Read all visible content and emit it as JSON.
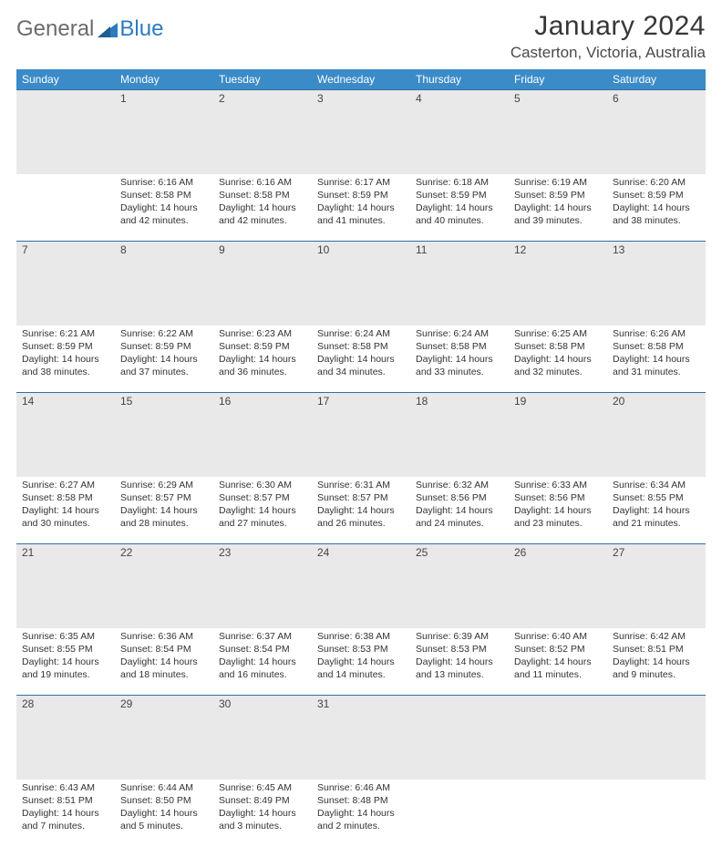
{
  "logo": {
    "general": "General",
    "blue": "Blue"
  },
  "title": "January 2024",
  "location": "Casterton, Victoria, Australia",
  "colors": {
    "header_bg": "#3b8bc8",
    "header_text": "#ffffff",
    "daynum_bg": "#e9e9e9",
    "border": "#2f6fa3",
    "logo_gray": "#6b6b6b",
    "logo_blue": "#2b7bbf"
  },
  "weekdays": [
    "Sunday",
    "Monday",
    "Tuesday",
    "Wednesday",
    "Thursday",
    "Friday",
    "Saturday"
  ],
  "weeks": [
    {
      "days": [
        null,
        {
          "n": "1",
          "sr": "Sunrise: 6:16 AM",
          "ss": "Sunset: 8:58 PM",
          "d1": "Daylight: 14 hours",
          "d2": "and 42 minutes."
        },
        {
          "n": "2",
          "sr": "Sunrise: 6:16 AM",
          "ss": "Sunset: 8:58 PM",
          "d1": "Daylight: 14 hours",
          "d2": "and 42 minutes."
        },
        {
          "n": "3",
          "sr": "Sunrise: 6:17 AM",
          "ss": "Sunset: 8:59 PM",
          "d1": "Daylight: 14 hours",
          "d2": "and 41 minutes."
        },
        {
          "n": "4",
          "sr": "Sunrise: 6:18 AM",
          "ss": "Sunset: 8:59 PM",
          "d1": "Daylight: 14 hours",
          "d2": "and 40 minutes."
        },
        {
          "n": "5",
          "sr": "Sunrise: 6:19 AM",
          "ss": "Sunset: 8:59 PM",
          "d1": "Daylight: 14 hours",
          "d2": "and 39 minutes."
        },
        {
          "n": "6",
          "sr": "Sunrise: 6:20 AM",
          "ss": "Sunset: 8:59 PM",
          "d1": "Daylight: 14 hours",
          "d2": "and 38 minutes."
        }
      ]
    },
    {
      "days": [
        {
          "n": "7",
          "sr": "Sunrise: 6:21 AM",
          "ss": "Sunset: 8:59 PM",
          "d1": "Daylight: 14 hours",
          "d2": "and 38 minutes."
        },
        {
          "n": "8",
          "sr": "Sunrise: 6:22 AM",
          "ss": "Sunset: 8:59 PM",
          "d1": "Daylight: 14 hours",
          "d2": "and 37 minutes."
        },
        {
          "n": "9",
          "sr": "Sunrise: 6:23 AM",
          "ss": "Sunset: 8:59 PM",
          "d1": "Daylight: 14 hours",
          "d2": "and 36 minutes."
        },
        {
          "n": "10",
          "sr": "Sunrise: 6:24 AM",
          "ss": "Sunset: 8:58 PM",
          "d1": "Daylight: 14 hours",
          "d2": "and 34 minutes."
        },
        {
          "n": "11",
          "sr": "Sunrise: 6:24 AM",
          "ss": "Sunset: 8:58 PM",
          "d1": "Daylight: 14 hours",
          "d2": "and 33 minutes."
        },
        {
          "n": "12",
          "sr": "Sunrise: 6:25 AM",
          "ss": "Sunset: 8:58 PM",
          "d1": "Daylight: 14 hours",
          "d2": "and 32 minutes."
        },
        {
          "n": "13",
          "sr": "Sunrise: 6:26 AM",
          "ss": "Sunset: 8:58 PM",
          "d1": "Daylight: 14 hours",
          "d2": "and 31 minutes."
        }
      ]
    },
    {
      "days": [
        {
          "n": "14",
          "sr": "Sunrise: 6:27 AM",
          "ss": "Sunset: 8:58 PM",
          "d1": "Daylight: 14 hours",
          "d2": "and 30 minutes."
        },
        {
          "n": "15",
          "sr": "Sunrise: 6:29 AM",
          "ss": "Sunset: 8:57 PM",
          "d1": "Daylight: 14 hours",
          "d2": "and 28 minutes."
        },
        {
          "n": "16",
          "sr": "Sunrise: 6:30 AM",
          "ss": "Sunset: 8:57 PM",
          "d1": "Daylight: 14 hours",
          "d2": "and 27 minutes."
        },
        {
          "n": "17",
          "sr": "Sunrise: 6:31 AM",
          "ss": "Sunset: 8:57 PM",
          "d1": "Daylight: 14 hours",
          "d2": "and 26 minutes."
        },
        {
          "n": "18",
          "sr": "Sunrise: 6:32 AM",
          "ss": "Sunset: 8:56 PM",
          "d1": "Daylight: 14 hours",
          "d2": "and 24 minutes."
        },
        {
          "n": "19",
          "sr": "Sunrise: 6:33 AM",
          "ss": "Sunset: 8:56 PM",
          "d1": "Daylight: 14 hours",
          "d2": "and 23 minutes."
        },
        {
          "n": "20",
          "sr": "Sunrise: 6:34 AM",
          "ss": "Sunset: 8:55 PM",
          "d1": "Daylight: 14 hours",
          "d2": "and 21 minutes."
        }
      ]
    },
    {
      "days": [
        {
          "n": "21",
          "sr": "Sunrise: 6:35 AM",
          "ss": "Sunset: 8:55 PM",
          "d1": "Daylight: 14 hours",
          "d2": "and 19 minutes."
        },
        {
          "n": "22",
          "sr": "Sunrise: 6:36 AM",
          "ss": "Sunset: 8:54 PM",
          "d1": "Daylight: 14 hours",
          "d2": "and 18 minutes."
        },
        {
          "n": "23",
          "sr": "Sunrise: 6:37 AM",
          "ss": "Sunset: 8:54 PM",
          "d1": "Daylight: 14 hours",
          "d2": "and 16 minutes."
        },
        {
          "n": "24",
          "sr": "Sunrise: 6:38 AM",
          "ss": "Sunset: 8:53 PM",
          "d1": "Daylight: 14 hours",
          "d2": "and 14 minutes."
        },
        {
          "n": "25",
          "sr": "Sunrise: 6:39 AM",
          "ss": "Sunset: 8:53 PM",
          "d1": "Daylight: 14 hours",
          "d2": "and 13 minutes."
        },
        {
          "n": "26",
          "sr": "Sunrise: 6:40 AM",
          "ss": "Sunset: 8:52 PM",
          "d1": "Daylight: 14 hours",
          "d2": "and 11 minutes."
        },
        {
          "n": "27",
          "sr": "Sunrise: 6:42 AM",
          "ss": "Sunset: 8:51 PM",
          "d1": "Daylight: 14 hours",
          "d2": "and 9 minutes."
        }
      ]
    },
    {
      "days": [
        {
          "n": "28",
          "sr": "Sunrise: 6:43 AM",
          "ss": "Sunset: 8:51 PM",
          "d1": "Daylight: 14 hours",
          "d2": "and 7 minutes."
        },
        {
          "n": "29",
          "sr": "Sunrise: 6:44 AM",
          "ss": "Sunset: 8:50 PM",
          "d1": "Daylight: 14 hours",
          "d2": "and 5 minutes."
        },
        {
          "n": "30",
          "sr": "Sunrise: 6:45 AM",
          "ss": "Sunset: 8:49 PM",
          "d1": "Daylight: 14 hours",
          "d2": "and 3 minutes."
        },
        {
          "n": "31",
          "sr": "Sunrise: 6:46 AM",
          "ss": "Sunset: 8:48 PM",
          "d1": "Daylight: 14 hours",
          "d2": "and 2 minutes."
        },
        null,
        null,
        null
      ]
    }
  ]
}
